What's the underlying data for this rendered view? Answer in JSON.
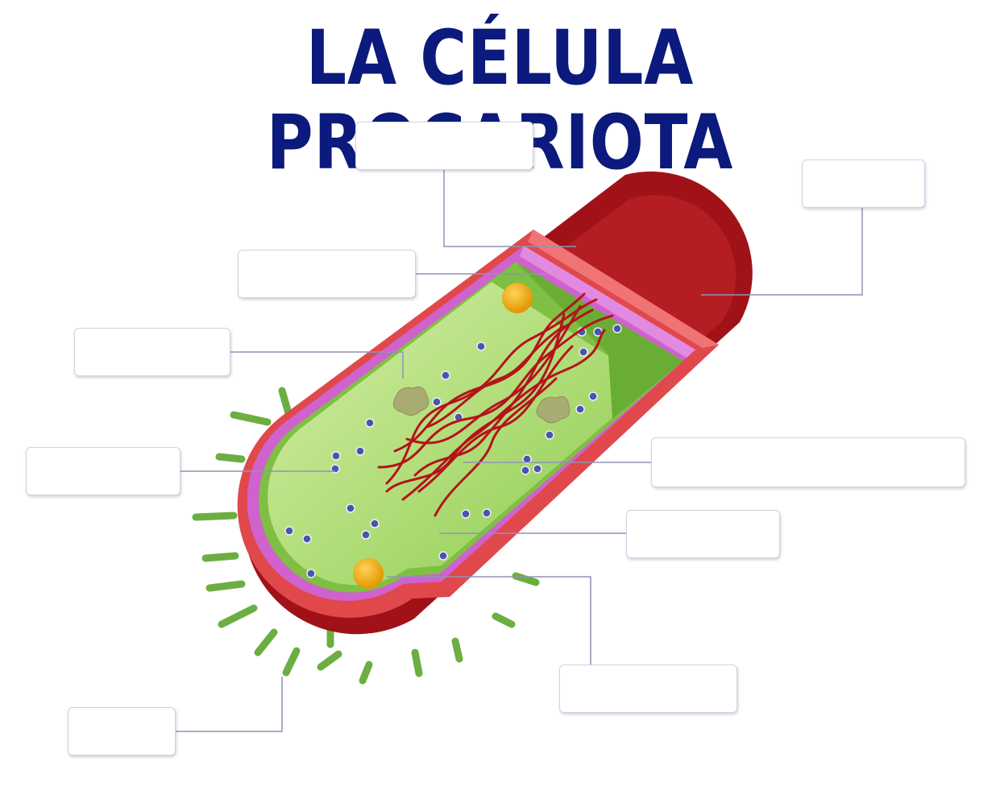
{
  "title": "LA CÉLULA PROCARIOTA",
  "colors": {
    "title": "#0b1a7c",
    "capsule": "#b3161d",
    "cell_wall": "#e04448",
    "membrane": "#cf62cc",
    "cytoplasm": "#a9d86c",
    "dna": "#b3141c",
    "ribosome": "#4b54a6",
    "inclusion": "#e8a814",
    "granule": "#a9ac72",
    "pili": "#6cae42",
    "leader_line": "#8f94b6"
  },
  "labels": [
    {
      "id": "label-top-center",
      "text": ""
    },
    {
      "id": "label-top-right",
      "text": ""
    },
    {
      "id": "label-upper-left",
      "text": ""
    },
    {
      "id": "label-mid-left",
      "text": ""
    },
    {
      "id": "label-left",
      "text": ""
    },
    {
      "id": "label-right-long",
      "text": ""
    },
    {
      "id": "label-right-mid",
      "text": ""
    },
    {
      "id": "label-bottom-center",
      "text": ""
    },
    {
      "id": "label-bottom-left",
      "text": ""
    }
  ]
}
